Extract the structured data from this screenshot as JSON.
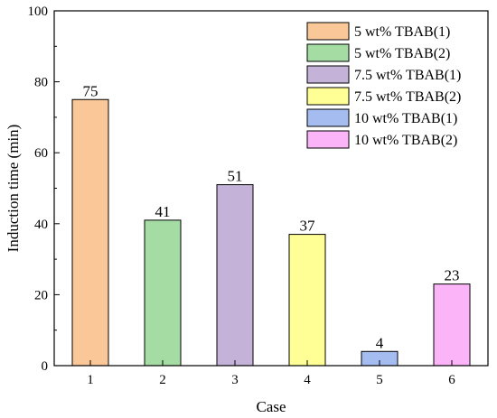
{
  "chart_data": {
    "type": "bar",
    "xlabel": "Case",
    "ylabel": "Induction time (min)",
    "ylim": [
      0,
      100
    ],
    "yticks": [
      0,
      20,
      40,
      60,
      80,
      100
    ],
    "categories": [
      "1",
      "2",
      "3",
      "4",
      "5",
      "6"
    ],
    "values": [
      75,
      41,
      51,
      37,
      4,
      23
    ],
    "data_labels": [
      "75",
      "41",
      "51",
      "37",
      "4",
      "23"
    ],
    "series_names": [
      "5 wt% TBAB(1)",
      "5 wt% TBAB(2)",
      "7.5 wt% TBAB(1)",
      "7.5 wt% TBAB(2)",
      "10 wt% TBAB(1)",
      "10 wt% TBAB(2)"
    ],
    "colors": [
      "#fac898",
      "#a4dca4",
      "#c4b2d8",
      "#ffff96",
      "#a4bcf0",
      "#fcb4f8"
    ],
    "legend_position": "top-right",
    "grid": false
  }
}
